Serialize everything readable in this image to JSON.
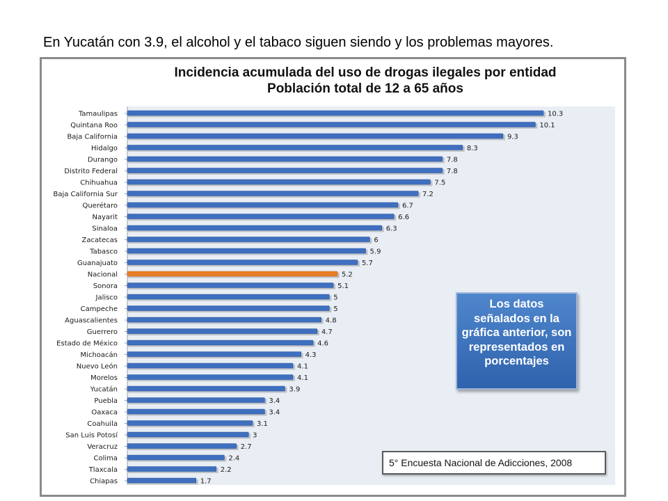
{
  "caption": "En Yucatán con 3.9, el alcohol y el tabaco siguen siendo y los problemas mayores.",
  "note_box": "Los datos señalados en la gráfica anterior, son representados en porcentajes",
  "source_box": "5° Encuesta Nacional de Adicciones, 2008",
  "colors": {
    "bar": "#3f6fbf",
    "highlight": "#e87d25",
    "plot_bg": "#e9eef4"
  },
  "chart_data": {
    "type": "bar",
    "orientation": "horizontal",
    "title": "Incidencia acumulada del uso de drogas ilegales por entidad",
    "subtitle": "Población total de 12 a 65 años",
    "xlabel": "",
    "ylabel": "",
    "xlim": [
      0,
      11
    ],
    "highlight": "Nacional",
    "categories": [
      "Tamaulipas",
      "Quintana Roo",
      "Baja California",
      "Hidalgo",
      "Durango",
      "Distrito Federal",
      "Chihuahua",
      "Baja California Sur",
      "Querétaro",
      "Nayarit",
      "Sinaloa",
      "Zacatecas",
      "Tabasco",
      "Guanajuato",
      "Nacional",
      "Sonora",
      "Jalisco",
      "Campeche",
      "Aguascalientes",
      "Guerrero",
      "Estado de México",
      "Michoacán",
      "Nuevo León",
      "Morelos",
      "Yucatán",
      "Puebla",
      "Oaxaca",
      "Coahuila",
      "San Luis Potosí",
      "Veracruz",
      "Colima",
      "Tlaxcala",
      "Chiapas"
    ],
    "values": [
      10.3,
      10.1,
      9.3,
      8.3,
      7.8,
      7.8,
      7.5,
      7.2,
      6.7,
      6.6,
      6.3,
      6,
      5.9,
      5.7,
      5.2,
      5.1,
      5,
      5,
      4.8,
      4.7,
      4.6,
      4.3,
      4.1,
      4.1,
      3.9,
      3.4,
      3.4,
      3.1,
      3,
      2.7,
      2.4,
      2.2,
      1.7
    ]
  }
}
